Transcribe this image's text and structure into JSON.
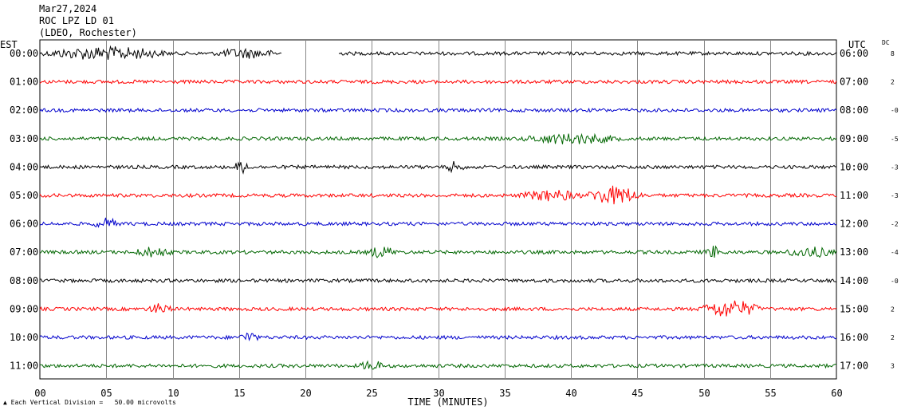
{
  "header": {
    "date": "Mar27,2024",
    "station": "ROC LPZ LD 01",
    "network": "(LDEO, Rochester)"
  },
  "footer": {
    "scale_note": "Each Vertical Division =   50.00 microvolts",
    "icon": "station-logo-icon"
  },
  "chart_data": {
    "type": "line",
    "title": "",
    "xlabel": "TIME (MINUTES)",
    "left_axis_label": "EST",
    "right_axis_label": "UTC",
    "dc_label": "DC",
    "xlim": [
      0,
      60
    ],
    "x_ticks": [
      "00",
      "05",
      "10",
      "15",
      "20",
      "25",
      "30",
      "35",
      "40",
      "45",
      "50",
      "55",
      "60"
    ],
    "x_tick_values": [
      0,
      5,
      10,
      15,
      20,
      25,
      30,
      35,
      40,
      45,
      50,
      55,
      60
    ],
    "grid": true,
    "trace_colors": [
      "#000000",
      "#ff0000",
      "#0000cc",
      "#006600"
    ],
    "rows": [
      {
        "est": "00:00",
        "utc": "06:00",
        "dc": "8",
        "color": "#000000",
        "gaps": [
          [
            18.2,
            22.5
          ]
        ],
        "events": [
          {
            "t": 0,
            "dur": 10,
            "amp": 1.6
          },
          {
            "t": 13,
            "dur": 5,
            "amp": 1.1
          }
        ]
      },
      {
        "est": "01:00",
        "utc": "07:00",
        "dc": "2",
        "color": "#ff0000",
        "gaps": [],
        "events": []
      },
      {
        "est": "02:00",
        "utc": "08:00",
        "dc": "-0",
        "color": "#0000cc",
        "gaps": [],
        "events": []
      },
      {
        "est": "03:00",
        "utc": "09:00",
        "dc": "-5",
        "color": "#006600",
        "gaps": [],
        "events": [
          {
            "t": 36,
            "dur": 8,
            "amp": 1.2
          }
        ]
      },
      {
        "est": "04:00",
        "utc": "10:00",
        "dc": "-3",
        "color": "#000000",
        "gaps": [],
        "events": [
          {
            "t": 14.5,
            "dur": 1.5,
            "amp": 1.4
          },
          {
            "t": 30.5,
            "dur": 1.5,
            "amp": 1.3
          }
        ]
      },
      {
        "est": "05:00",
        "utc": "11:00",
        "dc": "-3",
        "color": "#ff0000",
        "gaps": [],
        "events": [
          {
            "t": 36,
            "dur": 5,
            "amp": 1.3
          },
          {
            "t": 41,
            "dur": 4.5,
            "amp": 2.4
          }
        ]
      },
      {
        "est": "06:00",
        "utc": "12:00",
        "dc": "-2",
        "color": "#0000cc",
        "gaps": [],
        "events": [
          {
            "t": 4,
            "dur": 2,
            "amp": 1.3
          }
        ]
      },
      {
        "est": "07:00",
        "utc": "13:00",
        "dc": "-4",
        "color": "#006600",
        "gaps": [],
        "events": [
          {
            "t": 7,
            "dur": 3,
            "amp": 1.2
          },
          {
            "t": 24.5,
            "dur": 2.5,
            "amp": 1.3
          },
          {
            "t": 50,
            "dur": 1.5,
            "amp": 1.5
          },
          {
            "t": 56,
            "dur": 4,
            "amp": 1.2
          }
        ]
      },
      {
        "est": "08:00",
        "utc": "14:00",
        "dc": "-0",
        "color": "#000000",
        "gaps": [],
        "events": []
      },
      {
        "est": "09:00",
        "utc": "15:00",
        "dc": "2",
        "color": "#ff0000",
        "gaps": [],
        "events": [
          {
            "t": 8,
            "dur": 2,
            "amp": 1.2
          },
          {
            "t": 49.5,
            "dur": 5,
            "amp": 2.2
          }
        ]
      },
      {
        "est": "10:00",
        "utc": "16:00",
        "dc": "2",
        "color": "#0000cc",
        "gaps": [],
        "events": [
          {
            "t": 15,
            "dur": 1.5,
            "amp": 1.3
          }
        ]
      },
      {
        "est": "11:00",
        "utc": "17:00",
        "dc": "3",
        "color": "#006600",
        "gaps": [],
        "events": [
          {
            "t": 24,
            "dur": 2,
            "amp": 1.2
          }
        ]
      }
    ]
  }
}
